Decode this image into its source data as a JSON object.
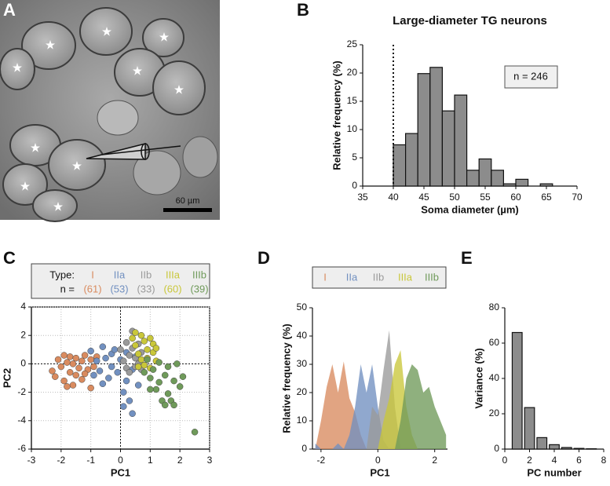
{
  "panel_labels": [
    "A",
    "B",
    "C",
    "D",
    "E"
  ],
  "image": {
    "scale_bar_label": "60 µm"
  },
  "chart_data": [
    {
      "type": "histogram",
      "title": "Large-diameter TG neurons",
      "xlabel": "Soma diameter (µm)",
      "ylabel": "Relative frequency (%)",
      "annotation": "n = 246",
      "reference_line_x": 40,
      "color": "#8c8c8c",
      "bins": [
        40,
        42,
        44,
        46,
        48,
        50,
        52,
        54,
        56,
        58,
        60,
        62,
        64,
        66
      ],
      "values": [
        7.3,
        9.3,
        19.9,
        21.0,
        13.3,
        16.1,
        2.8,
        4.8,
        2.8,
        0.4,
        1.2,
        0,
        0.4
      ],
      "xlim": [
        35,
        70
      ],
      "xticks": [
        35,
        40,
        45,
        50,
        55,
        60,
        65,
        70
      ],
      "ylim": [
        0,
        25
      ],
      "yticks": [
        0,
        5,
        10,
        15,
        20,
        25
      ]
    },
    {
      "type": "scatter",
      "xlabel": "PC1",
      "ylabel": "PC2",
      "legend_title": "Type:",
      "count_title": "n =",
      "grid": true,
      "zero_lines": true,
      "xlim": [
        -3,
        3
      ],
      "xticks": [
        -3,
        -2,
        -1,
        0,
        1,
        2,
        3
      ],
      "ylim": [
        -6,
        4
      ],
      "yticks": [
        -6,
        -4,
        -2,
        0,
        2,
        4
      ],
      "series": [
        {
          "name": "I",
          "n": "(61)",
          "color": "#d98b5f",
          "x": [
            -2.3,
            -2.1,
            -2.0,
            -1.9,
            -1.9,
            -1.8,
            -1.7,
            -1.7,
            -1.6,
            -1.6,
            -1.5,
            -1.5,
            -1.4,
            -1.3,
            -1.3,
            -1.2,
            -1.1,
            -1.0,
            -1.0,
            -0.9,
            -0.8,
            -2.2,
            -1.8,
            -1.2
          ],
          "values": [
            -0.5,
            0.3,
            -0.2,
            0.6,
            -1.2,
            0.1,
            -0.6,
            0.5,
            -1.5,
            0.0,
            0.4,
            -0.8,
            -0.3,
            0.2,
            -1.1,
            0.6,
            -0.4,
            -1.7,
            0.3,
            -0.2,
            0.5,
            -0.9,
            -1.6,
            -0.7
          ]
        },
        {
          "name": "IIa",
          "n": "(53)",
          "color": "#7190c0",
          "x": [
            -1.0,
            -0.8,
            -0.7,
            -0.6,
            -0.5,
            -0.4,
            -0.3,
            -0.3,
            -0.2,
            -0.1,
            0.0,
            0.1,
            0.1,
            0.2,
            0.2,
            0.3,
            0.4,
            0.4,
            0.5,
            0.6,
            -0.6,
            -0.9
          ],
          "values": [
            0.9,
            0.2,
            -0.5,
            1.2,
            0.4,
            -1.0,
            0.7,
            -0.2,
            1.0,
            -0.6,
            0.3,
            -2.0,
            -3.0,
            -1.2,
            0.8,
            -2.6,
            -0.4,
            -3.5,
            0.5,
            -1.5,
            -1.4,
            -0.8
          ]
        },
        {
          "name": "IIb",
          "n": "(33)",
          "color": "#9a9a9a",
          "x": [
            0.0,
            0.1,
            0.2,
            0.2,
            0.3,
            0.4,
            0.4,
            0.5,
            0.5,
            0.6,
            0.6,
            0.7,
            0.3,
            0.7
          ],
          "values": [
            1.0,
            0.2,
            1.5,
            -0.3,
            0.6,
            2.3,
            1.1,
            -0.2,
            0.4,
            1.4,
            0.0,
            0.8,
            -0.6,
            -0.4
          ]
        },
        {
          "name": "IIIa",
          "n": "(60)",
          "color": "#c9c73a",
          "x": [
            0.4,
            0.5,
            0.6,
            0.7,
            0.7,
            0.8,
            0.8,
            0.9,
            0.9,
            1.0,
            1.0,
            1.1,
            1.1,
            1.2,
            0.5,
            0.6,
            1.2
          ],
          "values": [
            1.8,
            1.3,
            0.7,
            2.0,
            0.3,
            1.6,
            -0.1,
            1.0,
            0.4,
            1.8,
            -0.3,
            0.8,
            1.4,
            0.2,
            2.2,
            -0.2,
            1.1
          ]
        },
        {
          "name": "IIIb",
          "n": "(39)",
          "color": "#6f9a5a",
          "x": [
            0.8,
            0.9,
            1.0,
            1.1,
            1.2,
            1.3,
            1.3,
            1.4,
            1.5,
            1.5,
            1.6,
            1.6,
            1.7,
            1.8,
            1.8,
            1.9,
            2.0,
            2.1,
            2.5,
            1.0
          ],
          "values": [
            -0.6,
            0.3,
            -1.0,
            -0.4,
            -1.8,
            0.1,
            -1.3,
            -2.6,
            -0.8,
            -2.9,
            -2.1,
            -0.2,
            -2.6,
            -1.2,
            -2.9,
            0.0,
            -1.6,
            -0.9,
            -4.8,
            -1.8
          ]
        }
      ]
    },
    {
      "type": "area",
      "xlabel": "PC1",
      "ylabel": "Relative frequency (%)",
      "xlim": [
        -2.3,
        2.45
      ],
      "xticks": [
        -2,
        0,
        2
      ],
      "ylim": [
        0,
        50
      ],
      "yticks": [
        0,
        10,
        20,
        30,
        40,
        50
      ],
      "x": [
        -2.2,
        -2.0,
        -1.8,
        -1.6,
        -1.4,
        -1.2,
        -1.0,
        -0.8,
        -0.6,
        -0.4,
        -0.2,
        0,
        0.2,
        0.4,
        0.6,
        0.8,
        1.0,
        1.2,
        1.4,
        1.6,
        1.8,
        2.0,
        2.2,
        2.4
      ],
      "series": [
        {
          "name": "I",
          "color": "#d98b5f",
          "values": [
            0,
            10,
            22,
            30,
            20,
            31,
            18,
            13,
            5,
            0,
            0,
            0,
            0,
            0,
            0,
            0,
            0,
            0,
            0,
            0,
            0,
            0,
            0,
            0
          ]
        },
        {
          "name": "IIa",
          "color": "#7190c0",
          "values": [
            2,
            0,
            0,
            0,
            2,
            0,
            5,
            15,
            30,
            20,
            30,
            15,
            3,
            0,
            0,
            0,
            0,
            0,
            0,
            0,
            0,
            0,
            0,
            0
          ]
        },
        {
          "name": "IIb",
          "color": "#9a9a9a",
          "values": [
            0,
            0,
            0,
            0,
            0,
            0,
            0,
            0,
            0,
            0,
            15,
            12,
            28,
            42,
            15,
            0,
            0,
            0,
            0,
            0,
            0,
            0,
            0,
            0
          ]
        },
        {
          "name": "IIIa",
          "color": "#c9c73a",
          "values": [
            0,
            0,
            0,
            0,
            0,
            0,
            0,
            0,
            0,
            0,
            0,
            0,
            10,
            18,
            30,
            35,
            15,
            5,
            0,
            0,
            0,
            0,
            0,
            0
          ]
        },
        {
          "name": "IIIb",
          "color": "#6f9a5a",
          "values": [
            0,
            0,
            0,
            0,
            0,
            0,
            0,
            0,
            0,
            0,
            0,
            0,
            0,
            0,
            0,
            10,
            25,
            30,
            28,
            20,
            22,
            15,
            10,
            5
          ]
        }
      ]
    },
    {
      "type": "bar",
      "xlabel": "PC number",
      "ylabel": "Variance (%)",
      "color": "#8c8c8c",
      "x": [
        1,
        2,
        3,
        4,
        5,
        6,
        7
      ],
      "values": [
        66,
        23.5,
        6.5,
        2.5,
        0.9,
        0.4,
        0.2
      ],
      "xlim": [
        0,
        8
      ],
      "xticks": [
        0,
        2,
        4,
        6,
        8
      ],
      "ylim": [
        0,
        80
      ],
      "yticks": [
        0,
        20,
        40,
        60,
        80
      ]
    }
  ]
}
